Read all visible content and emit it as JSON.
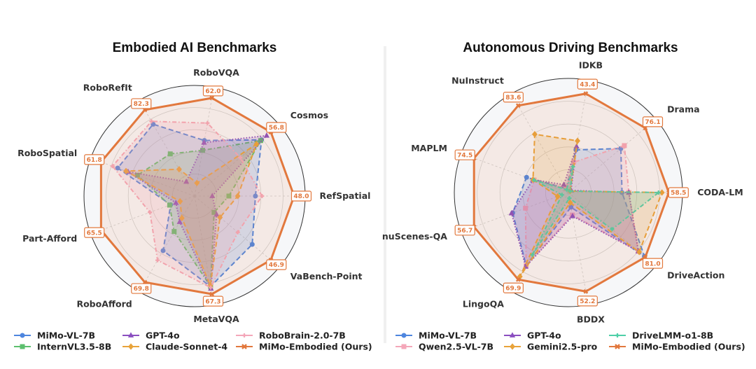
{
  "chart_data": [
    {
      "type": "radar",
      "title": "Embodied AI Benchmarks",
      "rlim": [
        0,
        1
      ],
      "grid": true,
      "legend_placement": "bottom",
      "categories": [
        "RefSpatial",
        "Cosmos",
        "RoboVQA",
        "RoboRefIt",
        "RoboSpatial",
        "Part-Afford",
        "RoboAfford",
        "MetaVQA",
        "VaBench-Point"
      ],
      "best_value_labels": [
        "48.0",
        "56.8",
        "62.0",
        "82.3",
        "61.8",
        "65.5",
        "69.8",
        "67.3",
        "46.9"
      ],
      "series": [
        {
          "name": "MiMo-VL-7B",
          "color": "#4e86df",
          "style": "dashed",
          "marker": "circle",
          "values": [
            0.55,
            0.79,
            0.51,
            0.75,
            0.74,
            0.23,
            0.57,
            0.83,
            0.68
          ]
        },
        {
          "name": "InternVL3.5-8B",
          "color": "#5cbf6e",
          "style": "dashdot",
          "marker": "square",
          "values": [
            0.31,
            0.78,
            0.42,
            0.44,
            0.55,
            0.24,
            0.37,
            0.83,
            0.23
          ]
        },
        {
          "name": "GPT-4o",
          "color": "#8b4fc0",
          "style": "dotted",
          "marker": "triangle",
          "values": [
            0.16,
            0.85,
            0.49,
            0.15,
            0.64,
            0.18,
            0.27,
            0.85,
            0.26
          ]
        },
        {
          "name": "Claude-Sonnet-4",
          "color": "#e8a33a",
          "style": "dashed",
          "marker": "diamond",
          "values": [
            0.39,
            0.73,
            0.12,
            0.28,
            0.66,
            0.14,
            0.23,
            0.82,
            0.3
          ]
        },
        {
          "name": "RoboBrain-2.0-7B",
          "color": "#f4a7b9",
          "style": "dashdot",
          "marker": "plus",
          "values": [
            0.61,
            0.54,
            0.67,
            0.78,
            0.79,
            0.43,
            0.67,
            0.84,
            0.51
          ]
        },
        {
          "name": "MiMo-Embodied (Ours)",
          "color": "#e2783d",
          "style": "solid",
          "marker": "x",
          "values": [
            0.9,
            0.9,
            0.9,
            0.9,
            0.9,
            0.9,
            0.9,
            0.9,
            0.9
          ]
        }
      ]
    },
    {
      "type": "radar",
      "title": "Autonomous Driving Benchmarks",
      "rlim": [
        0,
        1
      ],
      "grid": true,
      "legend_placement": "bottom",
      "categories": [
        "CODA-LM",
        "Drama",
        "IDKB",
        "NuInstruct",
        "MAPLM",
        "nuScenes-QA",
        "LingoQA",
        "BDDX",
        "DriveAction"
      ],
      "best_value_labels": [
        "58.5",
        "76.1",
        "43.4",
        "83.6",
        "74.5",
        "56.7",
        "69.9",
        "52.2",
        "81.0"
      ],
      "series": [
        {
          "name": "MiMo-VL-7B",
          "color": "#4e86df",
          "style": "dashed",
          "marker": "circle",
          "values": [
            0.47,
            0.6,
            0.38,
            0.04,
            0.39,
            0.52,
            0.74,
            0.13,
            0.87
          ]
        },
        {
          "name": "Qwen2.5-VL-7B",
          "color": "#f4a7b9",
          "style": "dashdot",
          "marker": "square",
          "values": [
            0.53,
            0.64,
            0.27,
            0.04,
            0.32,
            0.4,
            0.74,
            0.2,
            0.8
          ]
        },
        {
          "name": "GPT-4o",
          "color": "#8b4fc0",
          "style": "dotted",
          "marker": "triangle",
          "values": [
            0.53,
            0.03,
            0.41,
            0.08,
            0.33,
            0.53,
            0.75,
            0.21,
            0.8
          ]
        },
        {
          "name": "Gemini2.5-pro",
          "color": "#e8a33a",
          "style": "dashed",
          "marker": "diamond",
          "values": [
            0.82,
            0.02,
            0.46,
            0.59,
            0.33,
            0.1,
            0.85,
            0.09,
            0.81
          ]
        },
        {
          "name": "DriveLMM-o1-8B",
          "color": "#4fcfa8",
          "style": "dashdot",
          "marker": "plus",
          "values": [
            0.79,
            0.02,
            0.23,
            0.03,
            0.32,
            0.06,
            0.63,
            0.05,
            0.5
          ]
        },
        {
          "name": "MiMo-Embodied (Ours)",
          "color": "#e2783d",
          "style": "solid",
          "marker": "x",
          "values": [
            0.88,
            0.88,
            0.88,
            0.88,
            0.88,
            0.88,
            0.88,
            0.88,
            0.88
          ]
        }
      ]
    }
  ]
}
